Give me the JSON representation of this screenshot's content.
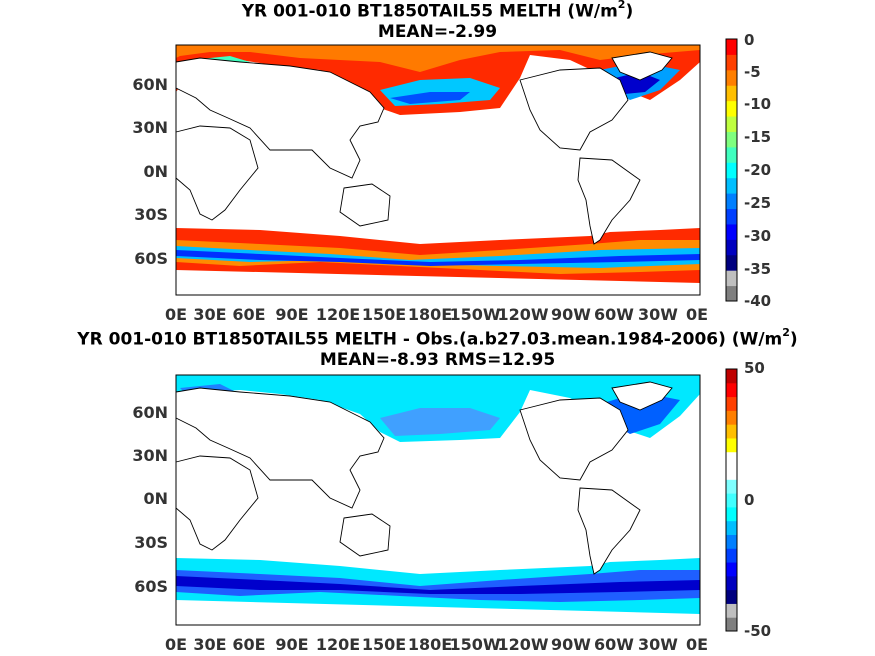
{
  "panels": [
    {
      "title_main": "YR 001-010 BT1850TAIL55  MELTH (W/m",
      "title_sup": "2",
      "title_end": ")",
      "subtitle": "MEAN=-2.99",
      "colorbar_ticks": [
        "0",
        "-5",
        "-10",
        "-15",
        "-20",
        "-25",
        "-30",
        "-35",
        "-40"
      ],
      "colorbar_range": [
        -40,
        0
      ],
      "colorbar_colors": [
        "#7f7f7f",
        "#bfbfbf",
        "#00007f",
        "#0000bf",
        "#0000ff",
        "#0040ff",
        "#007fff",
        "#00bfff",
        "#00ffff",
        "#40ffbf",
        "#7fff7f",
        "#bfff40",
        "#ffff00",
        "#ffbf00",
        "#ff7f00",
        "#ff4000",
        "#ff0000"
      ]
    },
    {
      "title_main": "YR 001-010 BT1850TAIL55 MELTH - Obs.(a.b27.03.mean.1984-2006) (W/m",
      "title_sup": "2",
      "title_end": ")",
      "subtitle": "MEAN=-8.93 RMS=12.95",
      "colorbar_ticks": [
        "50",
        "0",
        "-50"
      ],
      "colorbar_range": [
        -50,
        50
      ],
      "colorbar_colors": [
        "#7f7f7f",
        "#bfbfbf",
        "#00007f",
        "#0000bf",
        "#0000ff",
        "#0040ff",
        "#007fff",
        "#00bfff",
        "#00ffff",
        "#40ffff",
        "#7fffff",
        "#ffffff",
        "#ffffff",
        "#ffff00",
        "#ffbf00",
        "#ff7f00",
        "#ff4000",
        "#ff0000",
        "#bf0000"
      ]
    }
  ],
  "y_ticks": [
    "60N",
    "30N",
    "0N",
    "30S",
    "60S"
  ],
  "x_ticks": [
    "0E",
    "30E",
    "60E",
    "90E",
    "120E",
    "150E",
    "180E",
    "150W",
    "120W",
    "90W",
    "60W",
    "30W",
    "0E"
  ]
}
